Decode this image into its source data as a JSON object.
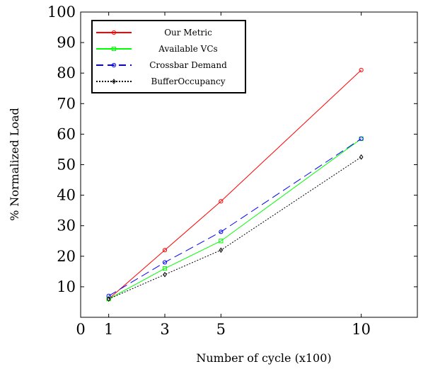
{
  "chart_data": {
    "type": "line",
    "xlabel": "Number of cycle (x100)",
    "ylabel": "% Normalized Load",
    "xlim": [
      0,
      12
    ],
    "ylim": [
      0,
      100
    ],
    "xticks": [
      0,
      1,
      3,
      5,
      10
    ],
    "yticks": [
      10,
      20,
      30,
      40,
      50,
      60,
      70,
      80,
      90,
      100
    ],
    "legend_position": "top-left",
    "grid": false,
    "x": [
      1,
      3,
      5,
      10
    ],
    "series": [
      {
        "name": "Our Metric",
        "values": [
          6,
          22,
          38,
          81
        ],
        "color": "#ff0000",
        "dash": "solid",
        "marker": "circle"
      },
      {
        "name": "Available VCs",
        "values": [
          6,
          16,
          25,
          58.5
        ],
        "color": "#00ff00",
        "dash": "solid",
        "marker": "square"
      },
      {
        "name": "Crossbar Demand",
        "values": [
          7,
          18,
          28,
          58.5
        ],
        "color": "#0000ff",
        "dash": "dashed",
        "marker": "circle"
      },
      {
        "name": "BufferOccupancy",
        "values": [
          6,
          14,
          22,
          52.5
        ],
        "color": "#000000",
        "dash": "dotted",
        "marker": "diamond"
      }
    ]
  }
}
